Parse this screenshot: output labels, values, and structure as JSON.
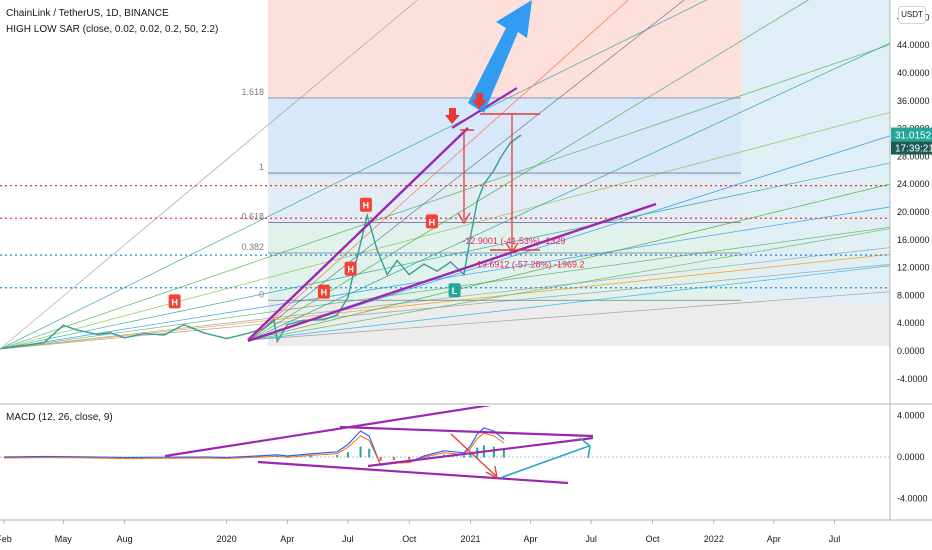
{
  "header": {
    "title": "ChainLink / TetherUS, 1D, BINANCE",
    "indicator": "HIGH LOW SAR (close, 0.02, 0.02, 0.2, 50, 2.2)",
    "macd_label": "MACD (12, 26, close, 9)",
    "currency_button": "USDT"
  },
  "price_tag": {
    "price": "31.0152",
    "countdown": "17:39:21"
  },
  "colors": {
    "up": "#26a69a",
    "down": "#ef5350",
    "channel": "#9c27b0",
    "arrow": "#e53935",
    "hbadge": "#f44336",
    "lbadge": "#26a69a",
    "trend": "#2196f3"
  },
  "chart_data": [
    {
      "type": "line",
      "panel": "price",
      "x_ticks": [
        "Feb",
        "May",
        "Aug",
        "2020",
        "Apr",
        "Jul",
        "Oct",
        "2021",
        "Apr",
        "Jul",
        "Oct",
        "2022",
        "Apr",
        "Jul"
      ],
      "x_tick_index": [
        0,
        89,
        181,
        334,
        425,
        516,
        608,
        700,
        790,
        881,
        973,
        1065,
        1155,
        1246
      ],
      "ylim": [
        -6,
        52
      ],
      "y_ticks": [
        "-4.0000",
        "0.0000",
        "4.0000",
        "8.0000",
        "12.0000",
        "16.0000",
        "20.0000",
        "24.0000",
        "28.0000",
        "32.0000",
        "36.0000",
        "40.0000",
        "44.0000",
        "48.0000"
      ],
      "y_values": [
        -4,
        0,
        4,
        8,
        12,
        16,
        20,
        24,
        28,
        32,
        36,
        40,
        44,
        48
      ],
      "series": [
        {
          "x": [
            0,
            30,
            60,
            89,
            110,
            140,
            160,
            181,
            210,
            240,
            270,
            300,
            334,
            360,
            390,
            405,
            410,
            425,
            450,
            480,
            500,
            516,
            530,
            545,
            560,
            575,
            590,
            608,
            630,
            650,
            670,
            690,
            700,
            710,
            720,
            735,
            745,
            760,
            775
          ],
          "values": [
            0.4,
            0.8,
            1.2,
            3.7,
            3.0,
            2.4,
            2.6,
            1.9,
            2.5,
            2.3,
            3.8,
            2.6,
            1.8,
            2.4,
            3.2,
            4.5,
            1.4,
            3.8,
            4.4,
            4.5,
            5.2,
            7.7,
            13.5,
            19.5,
            14.5,
            11.0,
            13.0,
            11.0,
            12.5,
            11.5,
            12.8,
            11.0,
            16.5,
            21.5,
            24.0,
            26.0,
            27.8,
            30.0,
            31.0
          ]
        }
      ],
      "fib_levels": [
        {
          "label": "1.618",
          "value": 36.4
        },
        {
          "label": "1",
          "value": 25.6
        },
        {
          "label": "0.618",
          "value": 18.5
        },
        {
          "label": "0.382",
          "value": 14.1
        },
        {
          "label": "0",
          "value": 7.3
        }
      ],
      "horizontal_lines": [
        23.8,
        19.1,
        13.8,
        9.1
      ],
      "annotations": [
        {
          "text": "-12.9001 (-41.53%) -1329",
          "x": 765,
          "y": 15.4
        },
        {
          "text": "-19.6912 (-57.28%) -1969.2",
          "x": 788,
          "y": 12.0
        }
      ],
      "markers": [
        {
          "label": "H",
          "x": 256,
          "value": 7.0
        },
        {
          "label": "H",
          "x": 480,
          "value": 8.4
        },
        {
          "label": "H",
          "x": 520,
          "value": 11.7
        },
        {
          "label": "H",
          "x": 543,
          "value": 20.9
        },
        {
          "label": "H",
          "x": 642,
          "value": 18.5
        },
        {
          "label": "L",
          "x": 676,
          "value": 8.6
        }
      ],
      "fib_projection_labels": [
        "1.618",
        "1",
        "0.618",
        "0.382",
        "0"
      ]
    },
    {
      "type": "line",
      "panel": "macd",
      "title": "MACD (12, 26, close, 9)",
      "ylim": [
        -5.6,
        5.6
      ],
      "y_ticks": [
        "-4.0000",
        "0.0000",
        "4.0000"
      ],
      "y_values": [
        -4,
        0,
        4
      ],
      "series": [
        {
          "x": [
            0,
            60,
            120,
            180,
            240,
            300,
            334,
            380,
            410,
            425,
            460,
            500,
            516,
            535,
            548,
            565,
            585,
            608,
            630,
            660,
            690,
            700,
            710,
            720,
            735,
            750
          ],
          "values": [
            0.0,
            0.05,
            0.02,
            -0.05,
            -0.02,
            0.0,
            -0.05,
            0.1,
            0.2,
            0.1,
            0.3,
            0.5,
            1.2,
            2.5,
            2.0,
            -0.8,
            -0.6,
            -0.5,
            0.1,
            0.6,
            0.4,
            1.1,
            2.2,
            2.8,
            2.5,
            1.7
          ]
        }
      ]
    }
  ]
}
